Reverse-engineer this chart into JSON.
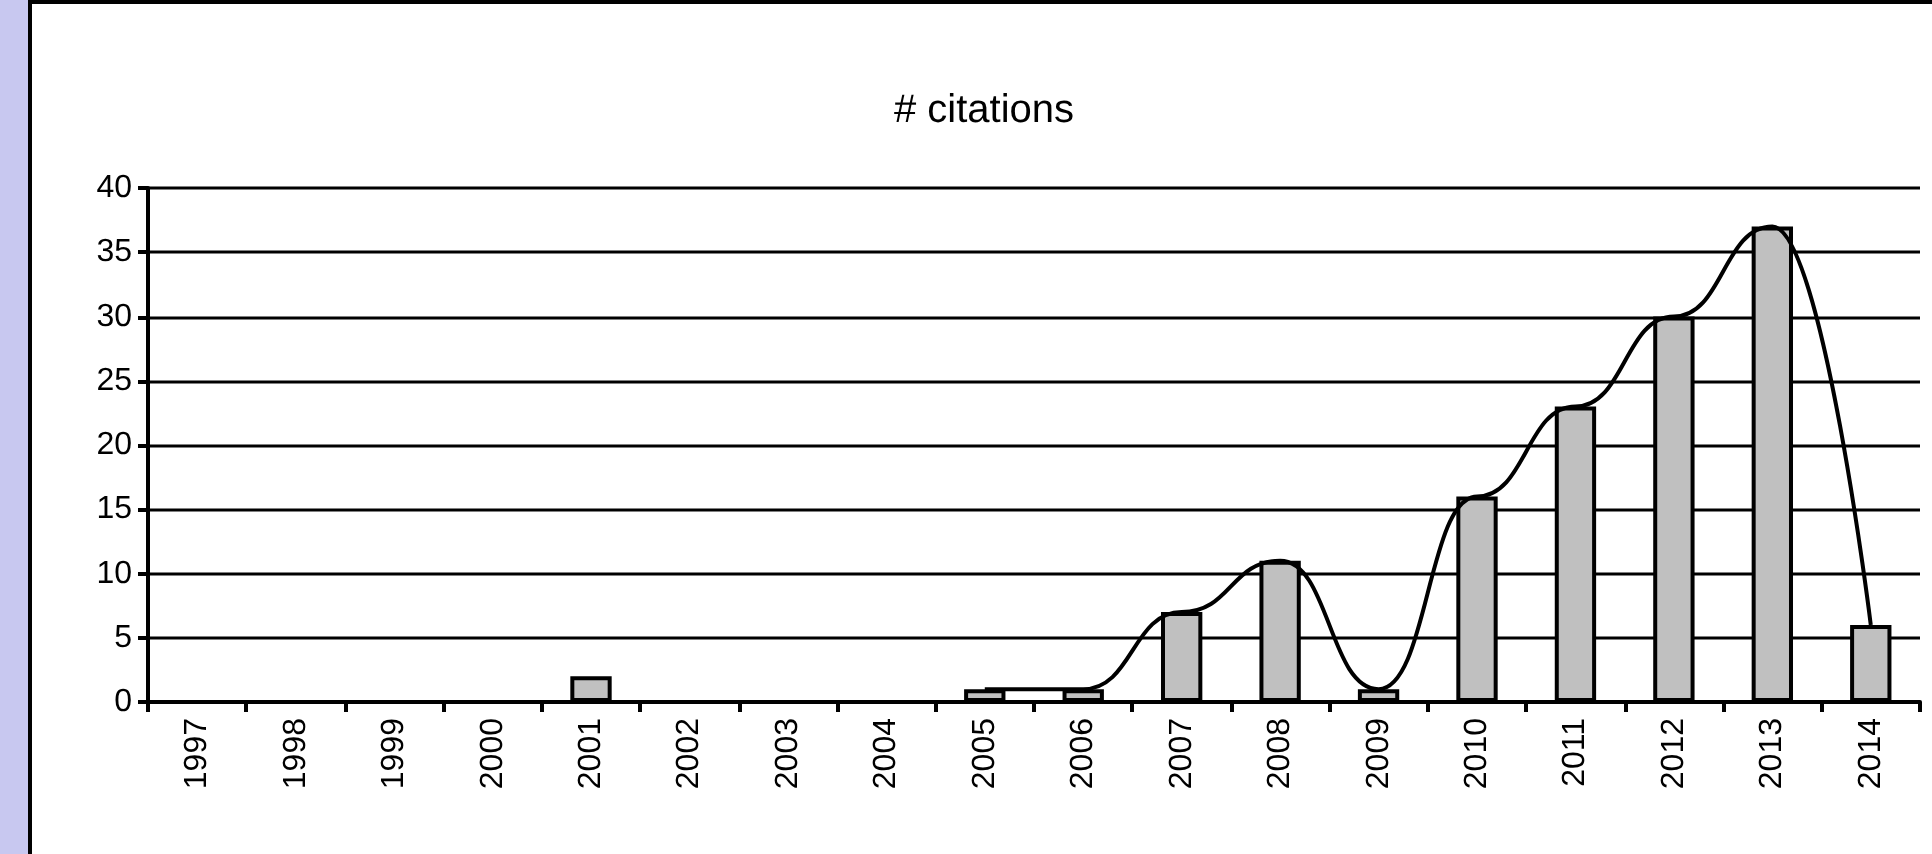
{
  "chart_data": {
    "type": "bar",
    "title": "# citations",
    "categories": [
      "1997",
      "1998",
      "1999",
      "2000",
      "2001",
      "2002",
      "2003",
      "2004",
      "2005",
      "2006",
      "2007",
      "2008",
      "2009",
      "2010",
      "2011",
      "2012",
      "2013",
      "2014"
    ],
    "series": [
      {
        "color": "#c0c0c0",
        "values": [
          0,
          0,
          0,
          0,
          2,
          0,
          0,
          0,
          1,
          1,
          7,
          11,
          1,
          16,
          23,
          30,
          37,
          6
        ]
      },
      {
        "type": "line",
        "color": "#000000",
        "values": [
          null,
          null,
          null,
          null,
          null,
          null,
          null,
          null,
          1,
          1,
          7,
          11,
          1,
          16,
          23,
          30,
          37,
          6
        ]
      }
    ],
    "ylim": [
      0,
      40
    ],
    "yticks": [
      0,
      5,
      10,
      15,
      20,
      25,
      30,
      35,
      40
    ],
    "grid": "y",
    "marker": "none"
  }
}
